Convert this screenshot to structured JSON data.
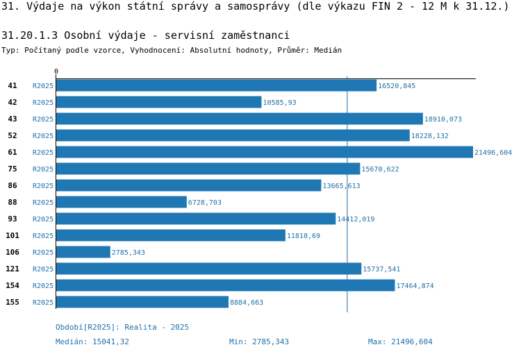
{
  "header": {
    "title": "31. Výdaje na výkon státní správy a samosprávy (dle výkazu FIN 2 - 12 M k 31.12.)",
    "subtitle": "31.20.1.3 Osobní výdaje - servisní zaměstnanci",
    "typeline": "Typ: Počítaný podle vzorce, Vyhodnocení: Absolutní hodnoty, Průměr: Medián"
  },
  "footer": {
    "period": "Období[R2025]: Realita - 2025",
    "median": "Medián: 15041,32",
    "min": "Min: 2785,343",
    "max": "Max: 21496,604"
  },
  "colors": {
    "bar": "#1f77b4",
    "label": "#1f6fa8",
    "axis": "#000000"
  },
  "chart_data": {
    "type": "bar",
    "orientation": "horizontal",
    "xaxis_tick": "0",
    "median": 15041.32,
    "categories": [
      "41",
      "42",
      "43",
      "52",
      "61",
      "75",
      "86",
      "88",
      "93",
      "101",
      "106",
      "121",
      "154",
      "155"
    ],
    "series_label": "R2025",
    "values": [
      16520.845,
      10585.93,
      18910.073,
      18228.132,
      21496.604,
      15670.622,
      13665.613,
      6728.703,
      14412.019,
      11818.69,
      2785.343,
      15737.541,
      17464.874,
      8884.663
    ],
    "value_labels": [
      "16520,845",
      "10585,93",
      "18910,073",
      "18228,132",
      "21496,604",
      "15670,622",
      "13665,613",
      "6728,703",
      "14412,019",
      "11818,69",
      "2785,343",
      "15737,541",
      "17464,874",
      "8884,663"
    ]
  }
}
